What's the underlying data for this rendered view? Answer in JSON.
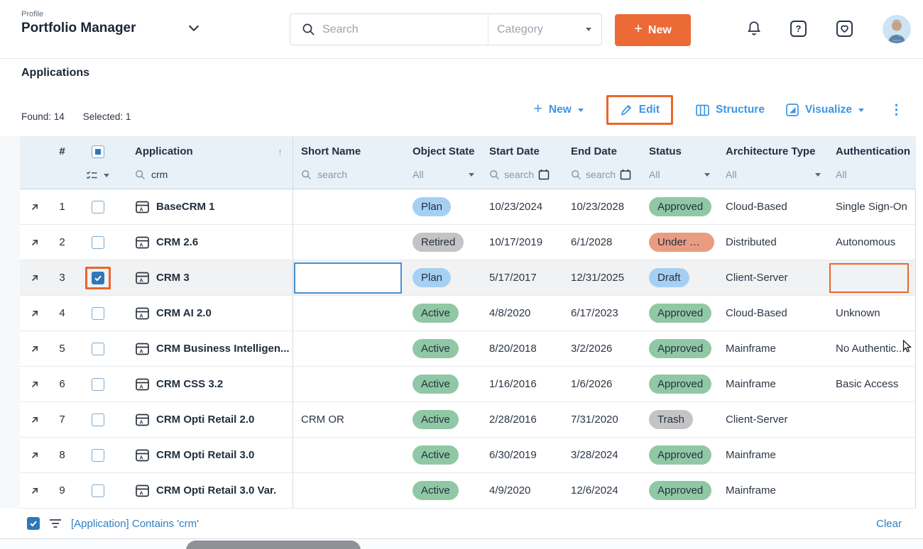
{
  "topbar": {
    "profile_label": "Profile",
    "profile_name": "Portfolio Manager",
    "search_placeholder": "Search",
    "category_label": "Category",
    "new_label": "New"
  },
  "page": {
    "title": "Applications",
    "found_label": "Found: 14",
    "selected_label": "Selected: 1"
  },
  "actions": {
    "new_label": "New",
    "edit_label": "Edit",
    "structure_label": "Structure",
    "visualize_label": "Visualize"
  },
  "table": {
    "headers": {
      "num": "#",
      "application": "Application",
      "short_name": "Short Name",
      "object_state": "Object State",
      "start_date": "Start Date",
      "end_date": "End Date",
      "status": "Status",
      "architecture_type": "Architecture Type",
      "authentication": "Authentication"
    },
    "filters": {
      "application_value": "crm",
      "short_name_placeholder": "search",
      "object_state_value": "All",
      "start_date_placeholder": "search",
      "end_date_placeholder": "search",
      "status_value": "All",
      "architecture_type_value": "All",
      "authentication_value": "All"
    },
    "rows": [
      {
        "num": "1",
        "name": "BaseCRM 1",
        "short_name": "",
        "object_state": {
          "label": "Plan",
          "color": "blue"
        },
        "start_date": "10/23/2024",
        "end_date": "10/23/2028",
        "status": {
          "label": "Approved",
          "color": "green"
        },
        "architecture": "Cloud-Based",
        "authentication": "Single Sign-On",
        "selected": false
      },
      {
        "num": "2",
        "name": "CRM 2.6",
        "short_name": "",
        "object_state": {
          "label": "Retired",
          "color": "gray"
        },
        "start_date": "10/17/2019",
        "end_date": "6/1/2028",
        "status": {
          "label": "Under R...",
          "color": "salmon"
        },
        "architecture": "Distributed",
        "authentication": "Autonomous",
        "selected": false
      },
      {
        "num": "3",
        "name": "CRM 3",
        "short_name": "",
        "object_state": {
          "label": "Plan",
          "color": "blue"
        },
        "start_date": "5/17/2017",
        "end_date": "12/31/2025",
        "status": {
          "label": "Draft",
          "color": "blue"
        },
        "architecture": "Client-Server",
        "authentication": "",
        "selected": true,
        "short_name_input": true,
        "auth_highlight": true,
        "checkbox_annotated": true
      },
      {
        "num": "4",
        "name": "CRM AI 2.0",
        "short_name": "",
        "object_state": {
          "label": "Active",
          "color": "green"
        },
        "start_date": "4/8/2020",
        "end_date": "6/17/2023",
        "status": {
          "label": "Approved",
          "color": "green"
        },
        "architecture": "Cloud-Based",
        "authentication": "Unknown",
        "selected": false
      },
      {
        "num": "5",
        "name": "CRM Business Intelligen...",
        "short_name": "",
        "object_state": {
          "label": "Active",
          "color": "green"
        },
        "start_date": "8/20/2018",
        "end_date": "3/2/2026",
        "status": {
          "label": "Approved",
          "color": "green"
        },
        "architecture": "Mainframe",
        "authentication": "No Authentic...",
        "selected": false
      },
      {
        "num": "6",
        "name": "CRM CSS 3.2",
        "short_name": "",
        "object_state": {
          "label": "Active",
          "color": "green"
        },
        "start_date": "1/16/2016",
        "end_date": "1/6/2026",
        "status": {
          "label": "Approved",
          "color": "green"
        },
        "architecture": "Mainframe",
        "authentication": "Basic Access",
        "selected": false
      },
      {
        "num": "7",
        "name": "CRM Opti Retail 2.0",
        "short_name": "CRM OR",
        "object_state": {
          "label": "Active",
          "color": "green"
        },
        "start_date": "2/28/2016",
        "end_date": "7/31/2020",
        "status": {
          "label": "Trash",
          "color": "gray"
        },
        "architecture": "Client-Server",
        "authentication": "",
        "selected": false
      },
      {
        "num": "8",
        "name": "CRM Opti Retail 3.0",
        "short_name": "",
        "object_state": {
          "label": "Active",
          "color": "green"
        },
        "start_date": "6/30/2019",
        "end_date": "3/28/2024",
        "status": {
          "label": "Approved",
          "color": "green"
        },
        "architecture": "Mainframe",
        "authentication": "",
        "selected": false
      },
      {
        "num": "9",
        "name": "CRM Opti Retail 3.0 Var.",
        "short_name": "",
        "object_state": {
          "label": "Active",
          "color": "green"
        },
        "start_date": "4/9/2020",
        "end_date": "12/6/2024",
        "status": {
          "label": "Approved",
          "color": "green"
        },
        "architecture": "Mainframe",
        "authentication": "",
        "selected": false
      }
    ]
  },
  "footer": {
    "filter_text": "[Application] Contains 'crm'",
    "clear_label": "Clear"
  },
  "colors": {
    "accent_orange": "#EB6A35",
    "annotation_orange": "#E8672C",
    "action_blue": "#3E96E4",
    "link_blue": "#2E7FC2",
    "header_bg": "#E9F1F8",
    "badge_blue": "#A6D0F2",
    "badge_green": "#90C8A5",
    "badge_gray": "#C4C4C4",
    "badge_salmon": "#E99C81",
    "checkbox_blue": "#2E77B8"
  }
}
